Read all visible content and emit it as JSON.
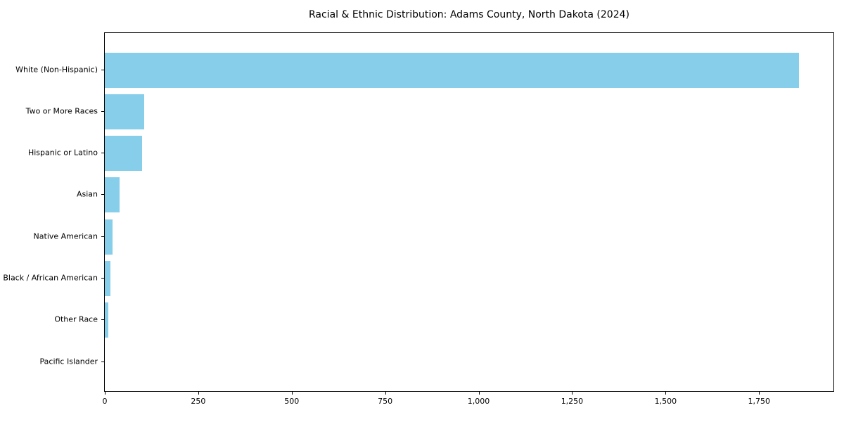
{
  "chart_data": {
    "type": "bar",
    "orientation": "horizontal",
    "title": "Racial & Ethnic Distribution: Adams County, North Dakota (2024)",
    "categories": [
      "White (Non-Hispanic)",
      "Two or More Races",
      "Hispanic or Latino",
      "Asian",
      "Native American",
      "Black / African American",
      "Other Race",
      "Pacific Islander"
    ],
    "values": [
      1856,
      105,
      100,
      40,
      20,
      15,
      10,
      0
    ],
    "bar_color": "#87CEEB",
    "xlim": [
      0,
      1949
    ],
    "xticks": [
      0,
      250,
      500,
      750,
      1000,
      1250,
      1500,
      1750
    ],
    "xtick_labels": [
      "0",
      "250",
      "500",
      "750",
      "1,000",
      "1,250",
      "1,500",
      "1,750"
    ],
    "xlabel": "",
    "ylabel": "",
    "grid": false,
    "legend": null
  }
}
